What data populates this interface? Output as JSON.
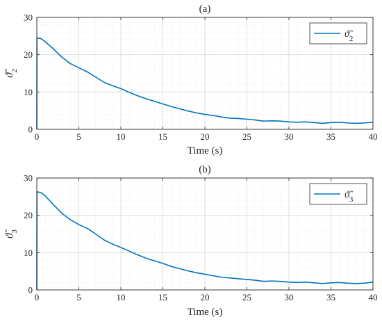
{
  "chart_data": [
    {
      "type": "line",
      "title": "(a)",
      "xlabel": "Time (s)",
      "ylabel": "ϑ̂2",
      "ylabel_base": "ϑ̂",
      "ylabel_sub": "2",
      "xlim": [
        0,
        40
      ],
      "ylim": [
        0,
        30
      ],
      "xticks": [
        0,
        5,
        10,
        15,
        20,
        25,
        30,
        35,
        40
      ],
      "yticks": [
        0,
        10,
        20,
        30
      ],
      "xtick_labels": [
        "0",
        "5",
        "10",
        "15",
        "20",
        "25",
        "30",
        "35",
        "40"
      ],
      "ytick_labels": [
        "0",
        "10",
        "20",
        "30"
      ],
      "grid": true,
      "minor_grid": true,
      "legend_position": "top-right",
      "series": [
        {
          "name": "ϑ̂2",
          "name_base": "ϑ̂",
          "name_sub": "2",
          "color": "#0072BD",
          "x": [
            0,
            0.02,
            0.5,
            1,
            2,
            3,
            4,
            5,
            6,
            7,
            8,
            9,
            10,
            11,
            12,
            13,
            14,
            15,
            16,
            17,
            18,
            19,
            20,
            21,
            22,
            23,
            24,
            25,
            26,
            27,
            28,
            29,
            30,
            31,
            32,
            33,
            34,
            35,
            36,
            37,
            38,
            39,
            40
          ],
          "y": [
            0,
            24.5,
            24.3,
            23.5,
            21.5,
            19.3,
            17.6,
            16.5,
            15.4,
            14.0,
            12.6,
            11.7,
            10.9,
            9.9,
            9.0,
            8.2,
            7.5,
            6.8,
            6.1,
            5.5,
            4.9,
            4.4,
            4.0,
            3.7,
            3.3,
            3.0,
            2.9,
            2.7,
            2.5,
            2.2,
            2.3,
            2.2,
            2.0,
            1.9,
            2.0,
            1.8,
            1.6,
            1.8,
            1.9,
            1.7,
            1.6,
            1.7,
            1.9
          ]
        }
      ]
    },
    {
      "type": "line",
      "title": "(b)",
      "xlabel": "Time (s)",
      "ylabel": "ϑ̂3",
      "ylabel_base": "ϑ̂",
      "ylabel_sub": "3",
      "xlim": [
        0,
        40
      ],
      "ylim": [
        0,
        30
      ],
      "xticks": [
        0,
        5,
        10,
        15,
        20,
        25,
        30,
        35,
        40
      ],
      "yticks": [
        0,
        10,
        20,
        30
      ],
      "xtick_labels": [
        "0",
        "5",
        "10",
        "15",
        "20",
        "25",
        "30",
        "35",
        "40"
      ],
      "ytick_labels": [
        "0",
        "10",
        "20",
        "30"
      ],
      "grid": true,
      "minor_grid": true,
      "legend_position": "top-right",
      "series": [
        {
          "name": "ϑ̂3",
          "name_base": "ϑ̂",
          "name_sub": "3",
          "color": "#0072BD",
          "x": [
            0,
            0.02,
            0.5,
            1,
            2,
            3,
            4,
            5,
            6,
            7,
            8,
            9,
            10,
            11,
            12,
            13,
            14,
            15,
            16,
            17,
            18,
            19,
            20,
            21,
            22,
            23,
            24,
            25,
            26,
            27,
            28,
            29,
            30,
            31,
            32,
            33,
            34,
            35,
            36,
            37,
            38,
            39,
            40
          ],
          "y": [
            0,
            26.3,
            26.1,
            25.2,
            22.8,
            20.5,
            18.8,
            17.5,
            16.5,
            15.0,
            13.4,
            12.3,
            11.4,
            10.4,
            9.4,
            8.5,
            7.8,
            7.1,
            6.3,
            5.7,
            5.1,
            4.6,
            4.2,
            3.8,
            3.4,
            3.2,
            3.0,
            2.8,
            2.6,
            2.3,
            2.4,
            2.3,
            2.1,
            2.0,
            2.1,
            1.9,
            1.7,
            1.9,
            2.0,
            1.8,
            1.7,
            1.8,
            2.1
          ]
        }
      ]
    }
  ]
}
